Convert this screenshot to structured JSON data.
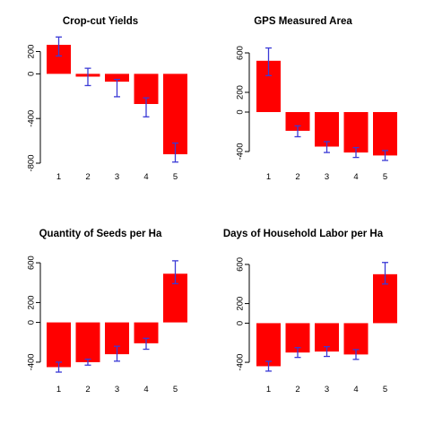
{
  "chart_data": [
    {
      "type": "bar",
      "title": "Crop-cut Yields",
      "xlabel": "",
      "ylabel": "",
      "categories": [
        "1",
        "2",
        "3",
        "4",
        "5"
      ],
      "values": [
        260,
        -25,
        -70,
        -270,
        -720
      ],
      "error_low": [
        160,
        -105,
        -205,
        -385,
        -790
      ],
      "error_high": [
        330,
        50,
        -50,
        -215,
        -620
      ],
      "ylim": [
        -800,
        300
      ],
      "yticks": [
        -800,
        -400,
        0,
        200
      ],
      "colors": {
        "bar": "#ff0000",
        "error": "#3a3ad6"
      }
    },
    {
      "type": "bar",
      "title": "GPS Measured Area",
      "xlabel": "",
      "ylabel": "",
      "categories": [
        "1",
        "2",
        "3",
        "4",
        "5"
      ],
      "values": [
        520,
        -190,
        -350,
        -410,
        -440
      ],
      "error_low": [
        370,
        -250,
        -410,
        -460,
        -490
      ],
      "error_high": [
        650,
        -140,
        -300,
        -360,
        -390
      ],
      "ylim": [
        -500,
        700
      ],
      "yticks": [
        -400,
        0,
        200,
        600
      ],
      "colors": {
        "bar": "#ff0000",
        "error": "#3a3ad6"
      }
    },
    {
      "type": "bar",
      "title": "Quantity of Seeds per Ha",
      "xlabel": "",
      "ylabel": "",
      "categories": [
        "1",
        "2",
        "3",
        "4",
        "5"
      ],
      "values": [
        -450,
        -400,
        -320,
        -210,
        490
      ],
      "error_low": [
        -500,
        -430,
        -390,
        -270,
        390
      ],
      "error_high": [
        -400,
        -370,
        -240,
        -160,
        620
      ],
      "ylim": [
        -500,
        700
      ],
      "yticks": [
        -400,
        0,
        200,
        600
      ],
      "colors": {
        "bar": "#ff0000",
        "error": "#3a3ad6"
      }
    },
    {
      "type": "bar",
      "title": "Days of Household Labor per Ha",
      "xlabel": "",
      "ylabel": "",
      "categories": [
        "1",
        "2",
        "3",
        "4",
        "5"
      ],
      "values": [
        -440,
        -300,
        -290,
        -320,
        500
      ],
      "error_low": [
        -490,
        -350,
        -340,
        -370,
        400
      ],
      "error_high": [
        -390,
        -250,
        -240,
        -270,
        620
      ],
      "ylim": [
        -500,
        700
      ],
      "yticks": [
        -400,
        0,
        200,
        600
      ],
      "colors": {
        "bar": "#ff0000",
        "error": "#3a3ad6"
      }
    }
  ]
}
